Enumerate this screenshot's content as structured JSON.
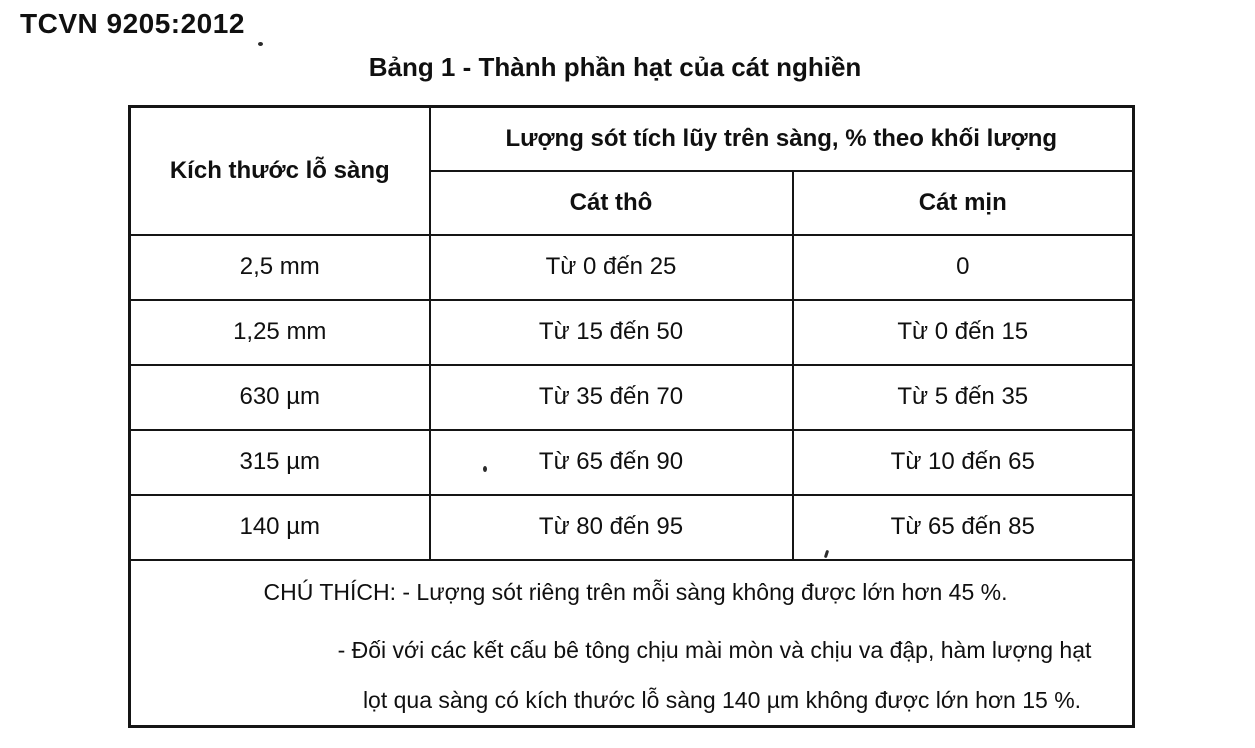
{
  "page": {
    "doc_code": "TCVN 9205:2012",
    "table_title": "Bảng 1 - Thành phần hạt của cát nghiền"
  },
  "table": {
    "header": {
      "sieve_size": "Kích thước lỗ sàng",
      "group": "Lượng sót tích lũy trên sàng, % theo khối lượng",
      "coarse": "Cát thô",
      "fine": "Cát mịn"
    },
    "rows": [
      {
        "size": "2,5 mm",
        "coarse": "Từ 0 đến 25",
        "fine": "0"
      },
      {
        "size": "1,25 mm",
        "coarse": "Từ 15 đến 50",
        "fine": "Từ 0 đến 15"
      },
      {
        "size": "630 µm",
        "coarse": "Từ 35 đến 70",
        "fine": "Từ 5 đến 35"
      },
      {
        "size": "315 µm",
        "coarse": "Từ 65 đến 90",
        "fine": "Từ 10 đến 65"
      },
      {
        "size": "140 µm",
        "coarse": "Từ 80 đến 95",
        "fine": "Từ 65 đến 85"
      }
    ],
    "notes": {
      "line1": "CHÚ THÍCH: - Lượng sót riêng trên mỗi sàng không được lớn hơn 45 %.",
      "line2": "- Đối với các kết cấu bê tông chịu mài mòn và chịu va đập, hàm lượng hạt",
      "line3": "lọt qua sàng có kích thước lỗ sàng 140 µm không được lớn hơn 15 %."
    }
  },
  "colors": {
    "ink": "#101010",
    "background": "#ffffff"
  }
}
